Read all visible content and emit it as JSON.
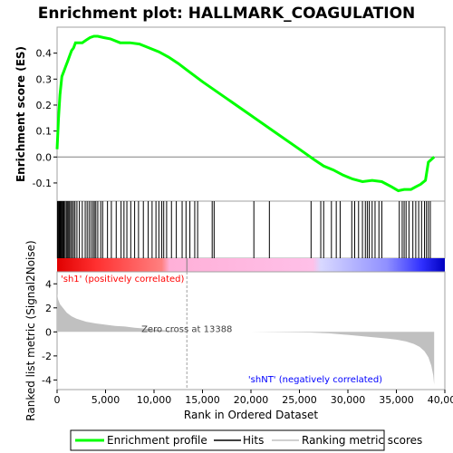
{
  "chart_data": {
    "type": "line",
    "title": "Enrichment plot: HALLMARK_COAGULATION",
    "es_panel": {
      "ylabel": "Enrichment score (ES)",
      "ylim": [
        -0.17,
        0.5
      ],
      "yticks": [
        -0.1,
        0.0,
        0.1,
        0.2,
        0.3,
        0.4
      ],
      "ytick_labels": [
        "-0.1",
        "0.0",
        "0.1",
        "0.2",
        "0.3",
        "0.4"
      ],
      "series": [
        {
          "name": "Enrichment profile",
          "color": "#00ff00",
          "x": [
            0,
            150,
            300,
            500,
            700,
            900,
            1100,
            1300,
            1500,
            1700,
            1900,
            2200,
            2600,
            3000,
            3400,
            3800,
            4200,
            4800,
            5500,
            6500,
            7500,
            8500,
            9500,
            10500,
            11500,
            12500,
            13388,
            15000,
            17500,
            20000,
            22500,
            25000,
            26500,
            27500,
            28500,
            29500,
            30500,
            31500,
            32500,
            33500,
            34500,
            35200,
            35800,
            36500,
            37000,
            37500,
            38000,
            38300,
            38600,
            38900
          ],
          "values": [
            0.03,
            0.15,
            0.24,
            0.31,
            0.33,
            0.35,
            0.37,
            0.39,
            0.41,
            0.42,
            0.44,
            0.44,
            0.44,
            0.45,
            0.46,
            0.465,
            0.465,
            0.46,
            0.455,
            0.44,
            0.44,
            0.435,
            0.42,
            0.405,
            0.385,
            0.36,
            0.335,
            0.29,
            0.225,
            0.16,
            0.095,
            0.03,
            -0.01,
            -0.035,
            -0.05,
            -0.07,
            -0.085,
            -0.095,
            -0.09,
            -0.095,
            -0.115,
            -0.13,
            -0.125,
            -0.125,
            -0.115,
            -0.105,
            -0.09,
            -0.02,
            -0.01,
            0.0
          ]
        }
      ]
    },
    "hits": {
      "name": "Hits",
      "positions": [
        50,
        120,
        200,
        280,
        350,
        430,
        520,
        600,
        700,
        820,
        950,
        1050,
        1150,
        1280,
        1400,
        1550,
        1700,
        1850,
        2050,
        2300,
        2600,
        2900,
        3100,
        3300,
        3500,
        3700,
        3850,
        4000,
        4200,
        4500,
        4700,
        5200,
        5600,
        6100,
        6600,
        6900,
        7200,
        7600,
        8000,
        8400,
        8900,
        9400,
        9800,
        10200,
        10500,
        10800,
        11000,
        11300,
        11800,
        12300,
        12900,
        13300,
        13700,
        14200,
        14500,
        16000,
        16200,
        20300,
        21900,
        26200,
        27200,
        27500,
        28300,
        28800,
        29200,
        30400,
        30700,
        31100,
        31500,
        31800,
        32000,
        32200,
        32500,
        32800,
        33200,
        33500,
        35300,
        35600,
        35800,
        36000,
        36300,
        36700,
        37000,
        37300,
        37600,
        37900,
        38100,
        38300,
        38500
      ]
    },
    "metric_panel": {
      "ylabel": "Ranked list metric (Signal2Noise)",
      "ylim": [
        -4.8,
        5.0
      ],
      "yticks": [
        -4,
        -2,
        0,
        2,
        4
      ],
      "ytick_labels": [
        "-4",
        "-2",
        "0",
        "2",
        "4"
      ],
      "series": [
        {
          "name": "Ranking metric scores",
          "color": "#c0c0c0",
          "x": [
            0,
            100,
            300,
            600,
            1000,
            1500,
            2000,
            3000,
            4000,
            5000,
            6000,
            7000,
            8000,
            9000,
            10000,
            11000,
            12000,
            13388,
            13389,
            15000,
            20000,
            26000,
            28000,
            30000,
            32000,
            34000,
            35000,
            36000,
            36800,
            37400,
            37900,
            38300,
            38600,
            38800,
            38900
          ],
          "values": [
            3.2,
            2.7,
            2.3,
            2.0,
            1.6,
            1.3,
            1.1,
            0.85,
            0.7,
            0.6,
            0.5,
            0.45,
            0.35,
            0.28,
            0.2,
            0.14,
            0.08,
            0.0,
            0.0,
            0.0,
            0.0,
            -0.05,
            -0.12,
            -0.25,
            -0.4,
            -0.55,
            -0.65,
            -0.8,
            -1.0,
            -1.25,
            -1.6,
            -2.1,
            -2.8,
            -3.6,
            -4.4
          ]
        }
      ],
      "zero_cross": 13388,
      "zero_cross_label": "Zero cross at 13388",
      "pos_label": "'sh1' (positively correlated)",
      "neg_label": "'shNT' (negatively correlated)",
      "pos_color": "#ff0000",
      "neg_color": "#0000ff"
    },
    "xlabel": "Rank in Ordered Dataset",
    "xlim": [
      0,
      40000
    ],
    "xticks": [
      0,
      5000,
      10000,
      15000,
      20000,
      25000,
      30000,
      35000,
      40000
    ],
    "xtick_labels": [
      "0",
      "5,000",
      "10,000",
      "15,000",
      "20,000",
      "25,000",
      "30,000",
      "35,000",
      "40,000"
    ],
    "dataset_size": 38900,
    "legend": {
      "placement": "bottom",
      "entries": [
        {
          "label": "Enrichment profile",
          "color": "#00ff00"
        },
        {
          "label": "Hits",
          "color": "#000000"
        },
        {
          "label": "Ranking metric scores",
          "color": "#c0c0c0"
        }
      ]
    }
  }
}
